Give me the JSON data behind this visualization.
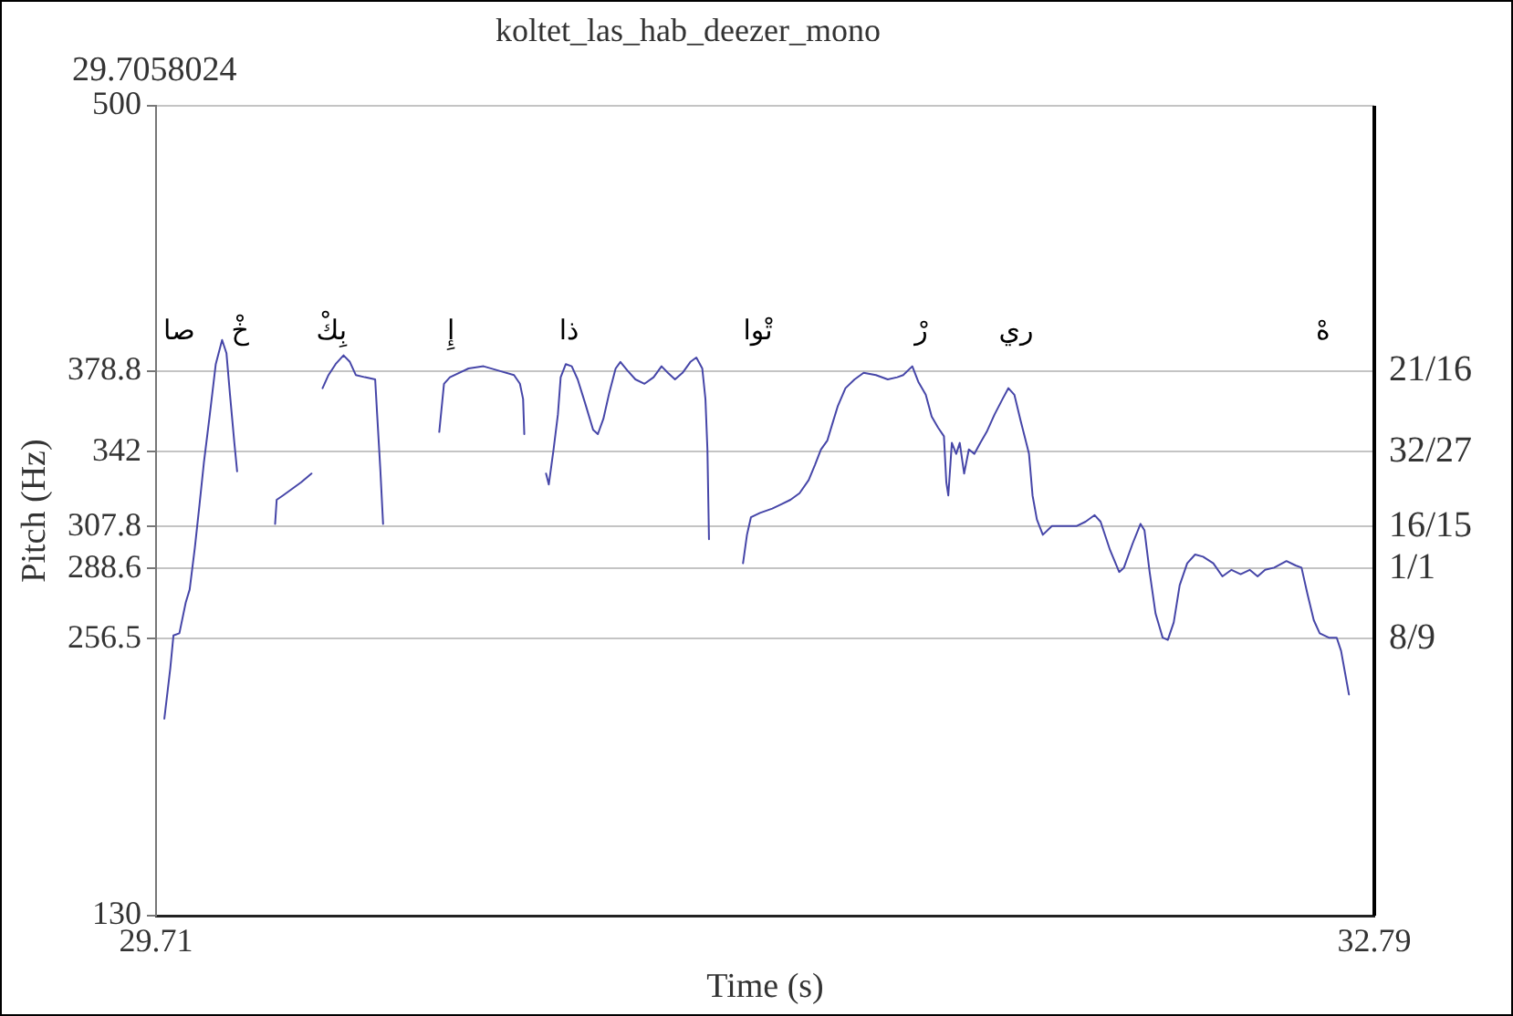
{
  "chart_data": {
    "type": "line",
    "title": "koltet_las_hab_deezer_mono",
    "xlabel": "Time (s)",
    "ylabel": "Pitch (Hz)",
    "annotations": [
      "29.7058024",
      "صا",
      "خْ",
      "بِكْ",
      "إِ",
      "ذا",
      "تْوا",
      "رْ",
      "ري",
      "هْ",
      "21/16",
      "32/27",
      "16/15",
      "1/1",
      "8/9"
    ],
    "x": [
      29.731,
      29.746,
      29.754,
      29.769,
      29.785,
      29.795,
      29.808,
      29.82,
      29.831,
      29.846,
      29.861,
      29.877,
      29.888,
      29.897,
      29.908,
      29.915,
      29.96,
      30.011,
      30.015,
      30.031,
      30.054,
      30.077,
      30.103,
      30.117,
      30.131,
      30.146,
      30.164,
      30.184,
      30.2,
      30.215,
      30.238,
      30.264,
      30.269,
      30.277,
      30.284,
      30.35,
      30.426,
      30.438,
      30.453,
      30.5,
      30.538,
      30.576,
      30.615,
      30.63,
      30.638,
      30.641,
      30.67,
      30.696,
      30.703,
      30.715,
      30.726,
      30.733,
      30.746,
      30.761,
      30.776,
      30.795,
      30.815,
      30.827,
      30.841,
      30.856,
      30.872,
      30.884,
      30.902,
      30.922,
      30.945,
      30.968,
      30.988,
      31.004,
      31.022,
      31.041,
      31.061,
      31.076,
      31.091,
      31.099,
      31.104,
      31.108,
      31.15,
      31.194,
      31.204,
      31.214,
      31.237,
      31.268,
      31.291,
      31.314,
      31.337,
      31.36,
      31.376,
      31.391,
      31.407,
      31.422,
      31.434,
      31.453,
      31.476,
      31.499,
      31.53,
      31.56,
      31.584,
      31.599,
      31.622,
      31.637,
      31.656,
      31.671,
      31.687,
      31.702,
      31.708,
      31.713,
      31.722,
      31.733,
      31.742,
      31.753,
      31.765,
      31.779,
      31.794,
      31.81,
      31.83,
      31.85,
      31.865,
      31.88,
      31.896,
      31.906,
      31.917,
      31.926,
      31.937,
      31.952,
      31.975,
      32.022,
      32.037,
      32.06,
      32.083,
      32.098,
      32.122,
      32.145,
      32.157,
      32.179,
      32.199,
      32.209,
      32.222,
      32.237,
      32.255,
      32.268,
      32.283,
      32.298,
      32.317,
      32.337,
      32.357,
      32.383,
      32.406,
      32.429,
      32.452,
      32.475,
      32.495,
      32.514,
      32.537,
      32.568,
      32.591,
      32.606,
      32.621,
      32.637,
      32.652,
      32.675,
      32.695,
      32.706,
      32.717,
      32.726
    ],
    "values": [
      220,
      243,
      258,
      259,
      273,
      279,
      298,
      318,
      337,
      359,
      382,
      393,
      387,
      368,
      346,
      333,
      null,
      309,
      320,
      322,
      325,
      328,
      332,
      null,
      371,
      377,
      382,
      386,
      383,
      377,
      376,
      375,
      359,
      334,
      309,
      null,
      351,
      373,
      376,
      380,
      381,
      379,
      377,
      373,
      366,
      350,
      null,
      332,
      327,
      343,
      359,
      376,
      382,
      381,
      375,
      364,
      352,
      350,
      357,
      369,
      380,
      383,
      379,
      375,
      373,
      376,
      381,
      378,
      375,
      378,
      383,
      385,
      380,
      366,
      343,
      302,
      null,
      291,
      304,
      312,
      314,
      316,
      318,
      320,
      323,
      329,
      336,
      343,
      347,
      356,
      363,
      371,
      375,
      378,
      377,
      375,
      376,
      377,
      381,
      374,
      368,
      358,
      353,
      349,
      328,
      322,
      346,
      341,
      346,
      332,
      343,
      341,
      346,
      351,
      359,
      366,
      371,
      368,
      356,
      349,
      341,
      322,
      311,
      304,
      308,
      308,
      308,
      310,
      313,
      310,
      297,
      287,
      289,
      300,
      309,
      306,
      287,
      268,
      257,
      256,
      264,
      281,
      291,
      295,
      294,
      291,
      285,
      288,
      286,
      288,
      285,
      288,
      289,
      292,
      290,
      289,
      277,
      265,
      259,
      257,
      257,
      251,
      240,
      231
    ],
    "color": "#4646a8",
    "xlim": [
      29.71,
      32.79
    ],
    "xticks": [
      29.71,
      32.79
    ],
    "ylim": [
      130,
      500
    ],
    "yticks": [
      130,
      256.5,
      288.6,
      307.8,
      342,
      378.8,
      500
    ],
    "grid": "y"
  }
}
